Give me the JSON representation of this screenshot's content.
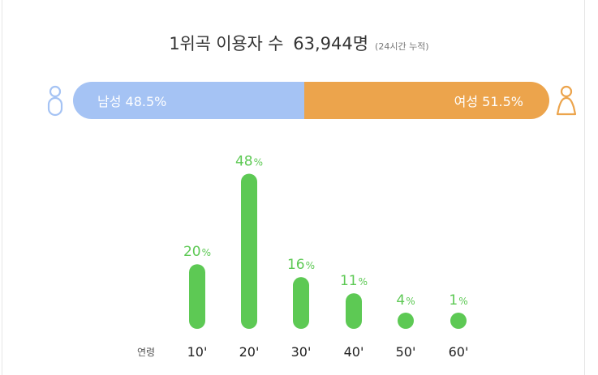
{
  "header": {
    "title": "1위곡 이용자 수",
    "count": "63,944명",
    "note": "(24시간 누적)"
  },
  "gender": {
    "male": {
      "label": "남성",
      "percent": 48.5,
      "display": "48.5%",
      "color": "#a5c3f4"
    },
    "female": {
      "label": "여성",
      "percent": 51.5,
      "display": "51.5%",
      "color": "#eca44c"
    }
  },
  "chart_data": {
    "type": "bar",
    "xlabel": "연령",
    "categories": [
      "10'",
      "20'",
      "30'",
      "40'",
      "50'",
      "60'"
    ],
    "values": [
      20,
      48,
      16,
      11,
      4,
      1
    ],
    "value_suffix": "%",
    "color": "#5dc954",
    "grid": false
  }
}
